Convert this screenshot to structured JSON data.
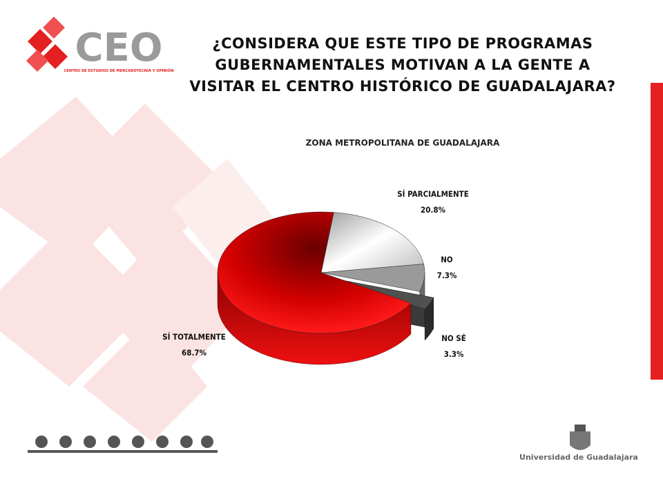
{
  "logo": {
    "name": "CEO",
    "tagline": "CENTRO DE ESTUDIOS DE MERCADOTECNIA Y OPINIÓN"
  },
  "footer": {
    "university": "Universidad de Guadalajara"
  },
  "chart_data": {
    "type": "pie",
    "title": "¿CONSIDERA QUE ESTE TIPO DE PROGRAMAS GUBERNAMENTALES MOTIVAN A LA GENTE A VISITAR EL CENTRO HISTÓRICO DE GUADALAJARA?",
    "subtitle": "ZONA METROPOLITANA DE GUADALAJARA",
    "categories": [
      "SÍ TOTALMENTE",
      "SÍ PARCIALMENTE",
      "NO",
      "NO SÉ"
    ],
    "values": [
      68.7,
      20.8,
      7.3,
      3.3
    ],
    "value_labels": [
      "68.7%",
      "20.8%",
      "7.3%",
      "3.3%"
    ],
    "colors": [
      "#e00000",
      "#d8d8d8",
      "#9a9a9a",
      "#505050"
    ]
  }
}
